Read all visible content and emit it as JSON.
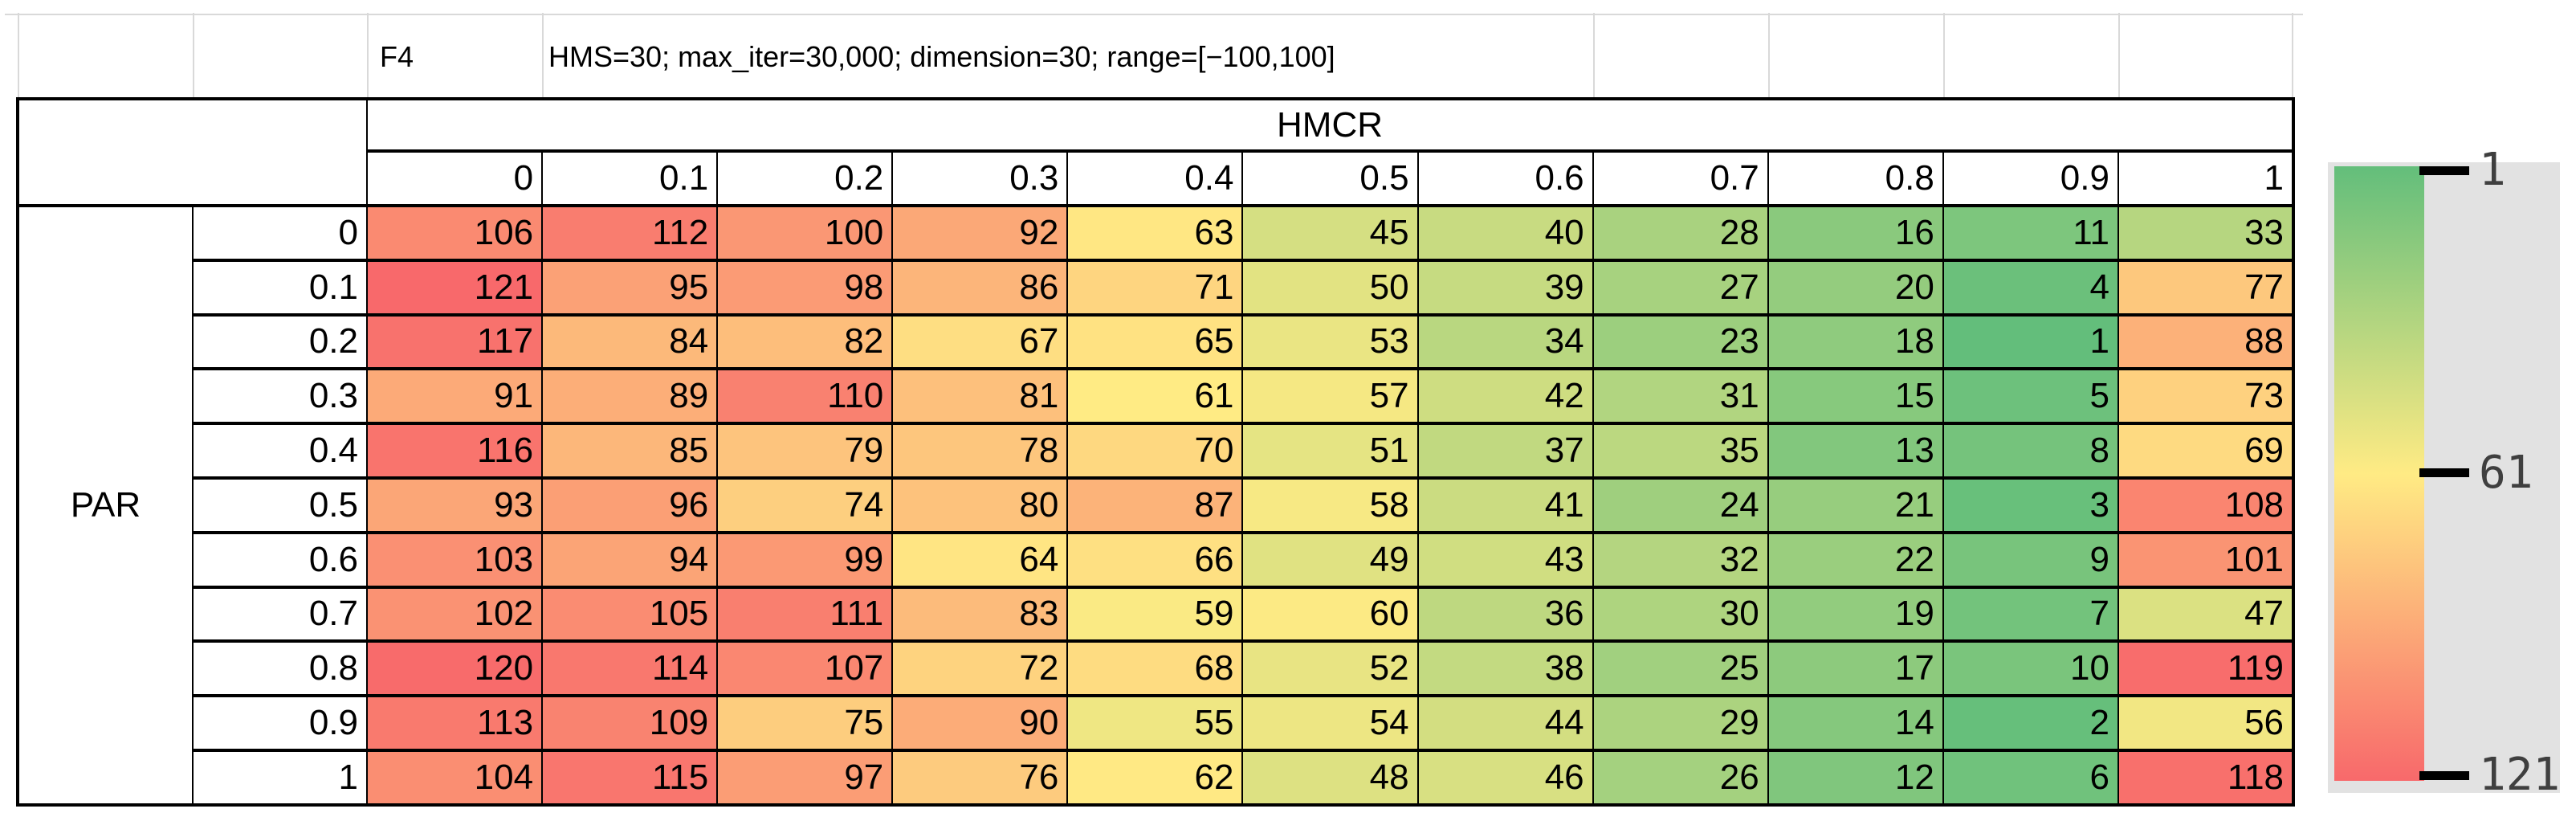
{
  "chart_data": {
    "type": "heatmap",
    "function_label": "F4",
    "settings_title": "HMS=30; max_iter=30,000; dimension=30; range=[−100,100]",
    "xlabel": "HMCR",
    "ylabel": "PAR",
    "x_ticklabels": [
      "0",
      "0.1",
      "0.2",
      "0.3",
      "0.4",
      "0.5",
      "0.6",
      "0.7",
      "0.8",
      "0.9",
      "1"
    ],
    "y_ticklabels": [
      "0",
      "0.1",
      "0.2",
      "0.3",
      "0.4",
      "0.5",
      "0.6",
      "0.7",
      "0.8",
      "0.9",
      "1"
    ],
    "values": [
      [
        106,
        112,
        100,
        92,
        63,
        45,
        40,
        28,
        16,
        11,
        33
      ],
      [
        121,
        95,
        98,
        86,
        71,
        50,
        39,
        27,
        20,
        4,
        77
      ],
      [
        117,
        84,
        82,
        67,
        65,
        53,
        34,
        23,
        18,
        1,
        88
      ],
      [
        91,
        89,
        110,
        81,
        61,
        57,
        42,
        31,
        15,
        5,
        73
      ],
      [
        116,
        85,
        79,
        78,
        70,
        51,
        37,
        35,
        13,
        8,
        69
      ],
      [
        93,
        96,
        74,
        80,
        87,
        58,
        41,
        24,
        21,
        3,
        108
      ],
      [
        103,
        94,
        99,
        64,
        66,
        49,
        43,
        32,
        22,
        9,
        101
      ],
      [
        102,
        105,
        111,
        83,
        59,
        60,
        36,
        30,
        19,
        7,
        47
      ],
      [
        120,
        114,
        107,
        72,
        68,
        52,
        38,
        25,
        17,
        10,
        119
      ],
      [
        113,
        109,
        75,
        90,
        55,
        54,
        44,
        29,
        14,
        2,
        56
      ],
      [
        104,
        115,
        97,
        76,
        62,
        48,
        46,
        26,
        12,
        6,
        118
      ]
    ],
    "value_range": [
      1,
      121
    ],
    "colorscale": {
      "min": {
        "value": 1,
        "color": "#63BE7B"
      },
      "mid": {
        "value": 61,
        "color": "#FFEB84"
      },
      "max": {
        "value": 121,
        "color": "#F8696B"
      }
    },
    "legend": {
      "ticks": [
        {
          "value": 1,
          "label": "1"
        },
        {
          "value": 61,
          "label": "61"
        },
        {
          "value": 121,
          "label": "121"
        }
      ]
    }
  }
}
